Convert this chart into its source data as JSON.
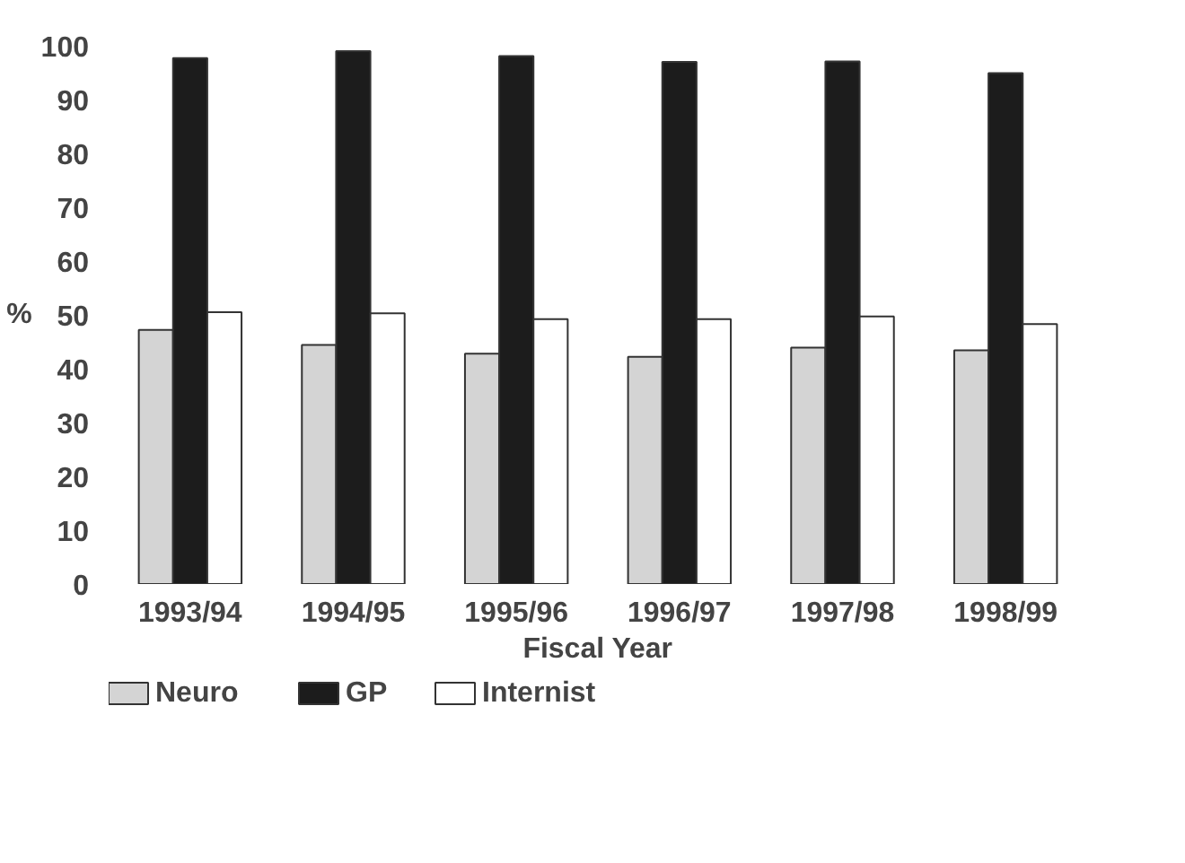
{
  "chart_data": {
    "type": "bar",
    "xlabel": "Fiscal Year",
    "ylabel": "%",
    "categories": [
      "1993/94",
      "1994/95",
      "1995/96",
      "1996/97",
      "1997/98",
      "1998/99"
    ],
    "series": [
      {
        "name": "Neuro",
        "color": "#d4d4d4",
        "values": [
          47.2,
          44.4,
          42.8,
          42.2,
          43.9,
          43.4
        ]
      },
      {
        "name": "GP",
        "color": "#1c1c1c",
        "values": [
          97.7,
          99,
          98.1,
          97,
          97.1,
          94.9
        ]
      },
      {
        "name": "Internist",
        "color": "#ffffff",
        "values": [
          50.5,
          50.3,
          49.2,
          49.2,
          49.7,
          48.3
        ]
      }
    ],
    "ylim": [
      0,
      100
    ],
    "yticks": [
      0,
      10,
      20,
      30,
      40,
      50,
      60,
      70,
      80,
      90,
      100
    ],
    "grid": false,
    "legend": "bottom left"
  }
}
